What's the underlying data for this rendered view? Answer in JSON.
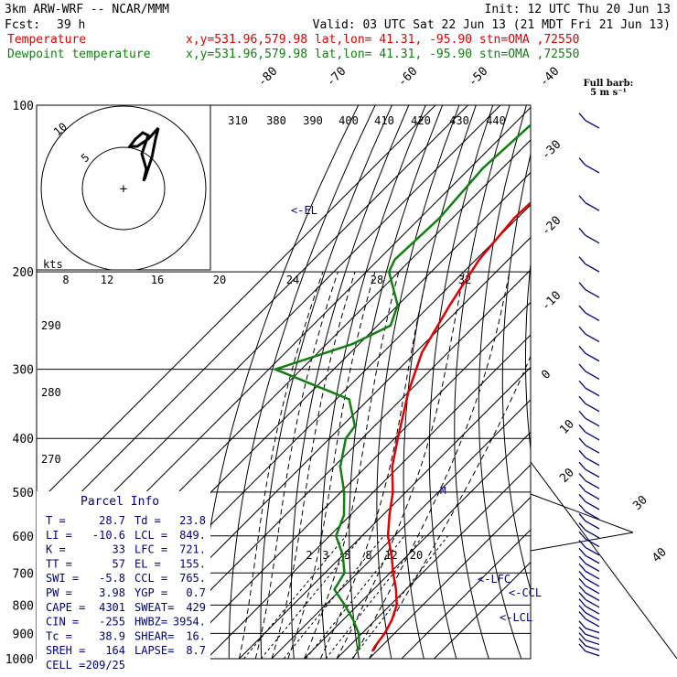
{
  "header": {
    "model": "3km ARW-WRF -- NCAR/MMM",
    "init": "Init: 12 UTC Thu 20 Jun 13",
    "fcst_label": "Fcst:",
    "fcst_value": "39 h",
    "valid": "Valid: 03 UTC Sat 22 Jun 13 (21 MDT Fri 21 Jun 13)",
    "temperature_label": "Temperature",
    "dewpoint_label": "Dewpoint temperature",
    "location_temp": "x,y=531.96,579.98  lat,lon= 41.31, -95.90  stn=OMA ,72550",
    "location_dew": "x,y=531.96,579.98  lat,lon= 41.31, -95.90  stn=OMA ,72550",
    "full_barb": "Full barb:",
    "full_barb_unit": "5 m s⁻¹"
  },
  "colors": {
    "temperature": "#e00000",
    "dewpoint": "#108010",
    "parcel_info": "#000080",
    "grid": "#000000"
  },
  "hodograph": {
    "ring_labels": [
      "5",
      "10"
    ],
    "speed_label": "kts",
    "speed_ticks": [
      "8",
      "12",
      "16",
      "20",
      "24",
      "28",
      "32"
    ],
    "theta_labels": [
      "310",
      "380",
      "390",
      "400",
      "410",
      "420",
      "430",
      "440"
    ]
  },
  "annotations": {
    "el": "<-EL",
    "lfc": "<-LFC",
    "ccl": "<-CCL",
    "lcl": "<-LCL",
    "m": "M"
  },
  "chart_data": {
    "type": "line",
    "title": "",
    "y_axis": "pressure",
    "y_scale": "log",
    "ylim": [
      1000,
      100
    ],
    "pressure_ticks": [
      100,
      200,
      300,
      400,
      500,
      600,
      700,
      800,
      900,
      1000
    ],
    "isotherm_labels": [
      "-80",
      "-70",
      "-60",
      "-50",
      "-40",
      "-30",
      "-20",
      "-10",
      "0",
      "10",
      "20",
      "30",
      "40"
    ],
    "adiabat_labels": [
      "290",
      "280",
      "270"
    ],
    "mixing_ratio_labels": [
      "2",
      "3",
      "5",
      "8",
      "12",
      "20"
    ],
    "series": [
      {
        "name": "Temperature",
        "points": [
          [
            100,
            -58
          ],
          [
            130,
            -60
          ],
          [
            160,
            -61
          ],
          [
            190,
            -59
          ],
          [
            230,
            -54
          ],
          [
            280,
            -48
          ],
          [
            330,
            -40
          ],
          [
            400,
            -29
          ],
          [
            450,
            -22
          ],
          [
            500,
            -14
          ],
          [
            550,
            -8
          ],
          [
            600,
            -2
          ],
          [
            650,
            5
          ],
          [
            700,
            11
          ],
          [
            750,
            17
          ],
          [
            800,
            22
          ],
          [
            850,
            25
          ],
          [
            900,
            27
          ],
          [
            950,
            28
          ],
          [
            970,
            28.7
          ]
        ]
      },
      {
        "name": "Dewpoint temperature",
        "points": [
          [
            100,
            -84
          ],
          [
            130,
            -86
          ],
          [
            160,
            -84
          ],
          [
            190,
            -85
          ],
          [
            200,
            -83
          ],
          [
            230,
            -70
          ],
          [
            250,
            -66
          ],
          [
            270,
            -72
          ],
          [
            300,
            -88
          ],
          [
            340,
            -56
          ],
          [
            380,
            -46
          ],
          [
            400,
            -45
          ],
          [
            450,
            -38
          ],
          [
            500,
            -29
          ],
          [
            550,
            -22
          ],
          [
            600,
            -18
          ],
          [
            650,
            -10
          ],
          [
            700,
            -4
          ],
          [
            750,
            -2
          ],
          [
            800,
            6
          ],
          [
            850,
            13
          ],
          [
            900,
            19
          ],
          [
            950,
            23.2
          ],
          [
            970,
            23.8
          ]
        ]
      }
    ],
    "hodograph_points": [
      [
        158,
        196
      ],
      [
        166,
        172
      ],
      [
        170,
        152
      ],
      [
        173,
        140
      ],
      [
        162,
        152
      ],
      [
        150,
        160
      ],
      [
        142,
        160
      ],
      [
        148,
        152
      ],
      [
        156,
        145
      ],
      [
        162,
        148
      ],
      [
        155,
        168
      ],
      [
        160,
        185
      ],
      [
        157,
        198
      ]
    ]
  },
  "parcel_info": {
    "title": "Parcel Info",
    "rows": [
      [
        "T  =",
        "28.7",
        "Td =",
        "23.8"
      ],
      [
        "LI =",
        "-10.6",
        "LCL =",
        "849."
      ],
      [
        "K  =",
        "33",
        "LFC =",
        "721."
      ],
      [
        "TT =",
        "57",
        "EL  =",
        "155."
      ],
      [
        "SWI =",
        "-5.8",
        "CCL =",
        "765."
      ],
      [
        "PW =",
        "3.98",
        "YGP =",
        "0.7"
      ],
      [
        "CAPE =",
        "4301",
        "SWEAT=",
        "429"
      ],
      [
        "CIN =",
        "-255",
        "HWBZ=",
        "3954."
      ],
      [
        "Tc =",
        "38.9",
        "SHEAR=",
        "16."
      ],
      [
        "SREH =",
        "164",
        "LAPSE=",
        "8.7"
      ],
      [
        "CELL =",
        "209/25",
        "",
        ""
      ]
    ]
  }
}
